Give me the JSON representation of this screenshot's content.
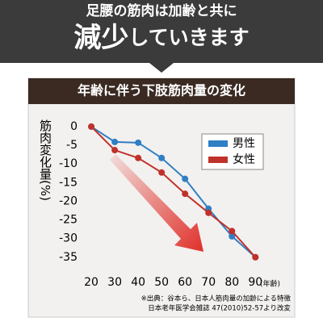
{
  "banner": {
    "line1": "足腰の筋肉は加齢と共に",
    "emphasis": "減少",
    "rest": "していきます"
  },
  "chart_data": {
    "type": "line",
    "title": "年齢に伴う下肢筋肉量の変化",
    "y_label": "筋肉変化量(%)",
    "x_label": "(年齢)",
    "x": [
      20,
      30,
      40,
      50,
      60,
      70,
      80,
      90
    ],
    "series": [
      {
        "name": "男性",
        "color": "#2f7fc4",
        "values": [
          0,
          -4.1,
          -4.3,
          -8.4,
          -14,
          -22,
          -29.4,
          -35
        ]
      },
      {
        "name": "女性",
        "color": "#c0312b",
        "values": [
          0,
          -6.3,
          -8.4,
          -12.3,
          -18,
          -23.1,
          -28,
          -35
        ]
      }
    ],
    "xlim": [
      15.5,
      93
    ],
    "xticks": [
      20,
      30,
      40,
      50,
      60,
      70,
      80,
      90
    ],
    "ylim": [
      -37,
      1.5
    ],
    "yticks": [
      0,
      -5,
      -10,
      -15,
      -20,
      -25,
      -30,
      -35
    ],
    "grid": false,
    "legend": "upper right",
    "notes": [
      "※出典：谷本ら、日本人筋肉量の加齢による特徴",
      "日本老年医学会雑誌 47(2010)52-57より改変"
    ]
  }
}
